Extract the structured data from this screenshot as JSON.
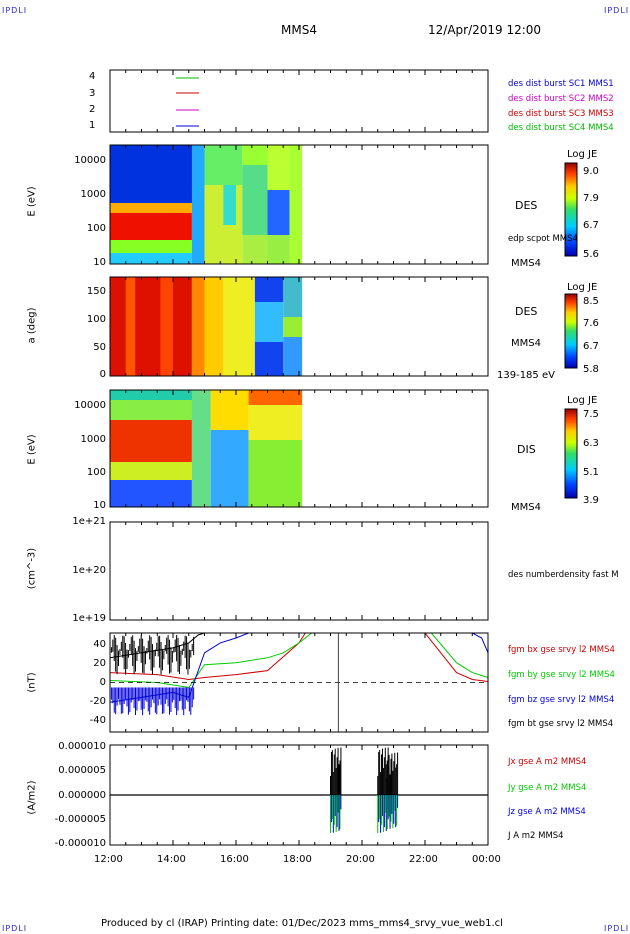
{
  "corner_label": "IPDLI",
  "header": {
    "spacecraft": "MMS4",
    "datetime": "12/Apr/2019 12:00"
  },
  "footer": {
    "text": "Produced by cl (IRAP)   Printing date: 01/Dec/2023   mms_mms4_srvy_vue_web1.cl"
  },
  "colors": {
    "mms1": "#0000cc",
    "mms2": "#cc00cc",
    "mms3": "#cc0000",
    "mms4": "#00bb00",
    "bx": "#cc0000",
    "by": "#00cc00",
    "bz": "#0000dd",
    "bt": "#000000"
  },
  "chart_data": [
    {
      "type": "line",
      "panel": "availability",
      "ylim": [
        0.5,
        4.5
      ],
      "yticks": [
        "4",
        "3",
        "2",
        "1"
      ],
      "legend": [
        {
          "text": "des dist burst SC1 MMS1",
          "color": "#0000cc"
        },
        {
          "text": "des dist burst SC2 MMS2",
          "color": "#cc00cc"
        },
        {
          "text": "des dist burst SC3 MMS3",
          "color": "#cc0000"
        },
        {
          "text": "des dist burst SC4 MMS4",
          "color": "#00bb00"
        }
      ]
    },
    {
      "type": "heatmap",
      "panel": "des-energy",
      "ylabel": "E (eV)",
      "yscale": "log",
      "ylim": [
        10,
        30000
      ],
      "yticks": [
        "10000",
        "1000",
        "100",
        "10"
      ],
      "label": "DES",
      "colorbar": {
        "title": "Log JE",
        "ticks": [
          "9.0",
          "7.9",
          "6.7",
          "5.6"
        ],
        "range": [
          5.6,
          9.0
        ]
      },
      "side_labels": [
        "edp scpot MMS4",
        "MMS4"
      ]
    },
    {
      "type": "heatmap",
      "panel": "des-pitch",
      "ylabel": "a (deg)",
      "ylim": [
        0,
        180
      ],
      "yticks": [
        "150",
        "100",
        "50",
        "0"
      ],
      "label": "DES",
      "colorbar": {
        "title": "Log JE",
        "ticks": [
          "8.5",
          "7.6",
          "6.7",
          "5.8"
        ],
        "range": [
          5.8,
          8.5
        ]
      },
      "side_labels": [
        "MMS4",
        "139-185 eV"
      ]
    },
    {
      "type": "heatmap",
      "panel": "dis-energy",
      "ylabel": "E (eV)",
      "yscale": "log",
      "ylim": [
        10,
        30000
      ],
      "yticks": [
        "10000",
        "1000",
        "100",
        "10"
      ],
      "label": "DIS",
      "colorbar": {
        "title": "Log JE",
        "ticks": [
          "7.5",
          "6.3",
          "5.1",
          "3.9"
        ],
        "range": [
          3.9,
          7.5
        ]
      },
      "side_labels": [
        "MMS4"
      ]
    },
    {
      "type": "line",
      "panel": "density",
      "ylabel": "(cm^-3)",
      "yscale": "log",
      "yticks": [
        "1e+21",
        "1e+20",
        "1e+19"
      ],
      "legend": [
        {
          "text": "des numberdensity fast M",
          "color": "#000000"
        }
      ]
    },
    {
      "type": "line",
      "panel": "magnetic-field",
      "ylabel": "(nT)",
      "ylim": [
        -50,
        50
      ],
      "yticks": [
        "40",
        "20",
        "0",
        "-20",
        "-40"
      ],
      "legend": [
        {
          "text": "fgm bx gse srvy l2 MMS4",
          "color": "#cc0000"
        },
        {
          "text": "fgm by gse srvy l2 MMS4",
          "color": "#00cc00"
        },
        {
          "text": "fgm bz gse srvy l2 MMS4",
          "color": "#0000dd"
        },
        {
          "text": "fgm bt gse srvy l2 MMS4",
          "color": "#000000"
        }
      ],
      "series": [
        {
          "name": "fgm bx gse srvy l2 MMS4",
          "x": [
            12.0,
            13.5,
            14.5,
            15.0,
            16.0,
            17.0,
            18.0,
            18.2,
            22.0,
            23.0,
            23.5,
            24.0
          ],
          "y": [
            10,
            8,
            3,
            5,
            8,
            12,
            40,
            50,
            50,
            10,
            3,
            1
          ]
        },
        {
          "name": "fgm by gse srvy l2 MMS4",
          "x": [
            12.0,
            13.5,
            14.5,
            15.0,
            16.0,
            17.0,
            17.5,
            18.0,
            18.4,
            22.2,
            23.0,
            23.5,
            24.0
          ],
          "y": [
            2,
            0,
            -5,
            18,
            20,
            25,
            30,
            40,
            50,
            50,
            20,
            10,
            5
          ]
        },
        {
          "name": "fgm bz gse srvy l2 MMS4",
          "x": [
            12.0,
            13.0,
            14.0,
            14.5,
            15.0,
            15.5,
            16.0,
            16.4,
            23.5,
            23.8,
            24.0
          ],
          "y": [
            -20,
            -15,
            -10,
            -15,
            30,
            40,
            45,
            50,
            50,
            45,
            30
          ]
        },
        {
          "name": "fgm bt gse srvy l2 MMS4",
          "x": [
            12.0,
            13.0,
            14.0,
            14.5,
            14.8,
            15.0
          ],
          "y": [
            25,
            30,
            35,
            40,
            48,
            50
          ]
        }
      ]
    },
    {
      "type": "line",
      "panel": "current-density",
      "ylabel": "(A/m2)",
      "ylim": [
        -1e-05,
        1e-05
      ],
      "yticks": [
        "0.000010",
        "0.000005",
        "0.000000",
        "-0.000005",
        "-0.000010"
      ],
      "legend": [
        {
          "text": "Jx gse A m2 MMS4",
          "color": "#cc0000"
        },
        {
          "text": "Jy gse A m2 MMS4",
          "color": "#00cc00"
        },
        {
          "text": "Jz gse A m2 MMS4",
          "color": "#0000dd"
        },
        {
          "text": "J A m2 MMS4",
          "color": "#000000"
        }
      ]
    }
  ],
  "xaxis": {
    "ticks": [
      "12:00",
      "14:00",
      "16:00",
      "18:00",
      "20:00",
      "22:00",
      "00:00"
    ],
    "range": [
      12,
      24
    ]
  }
}
